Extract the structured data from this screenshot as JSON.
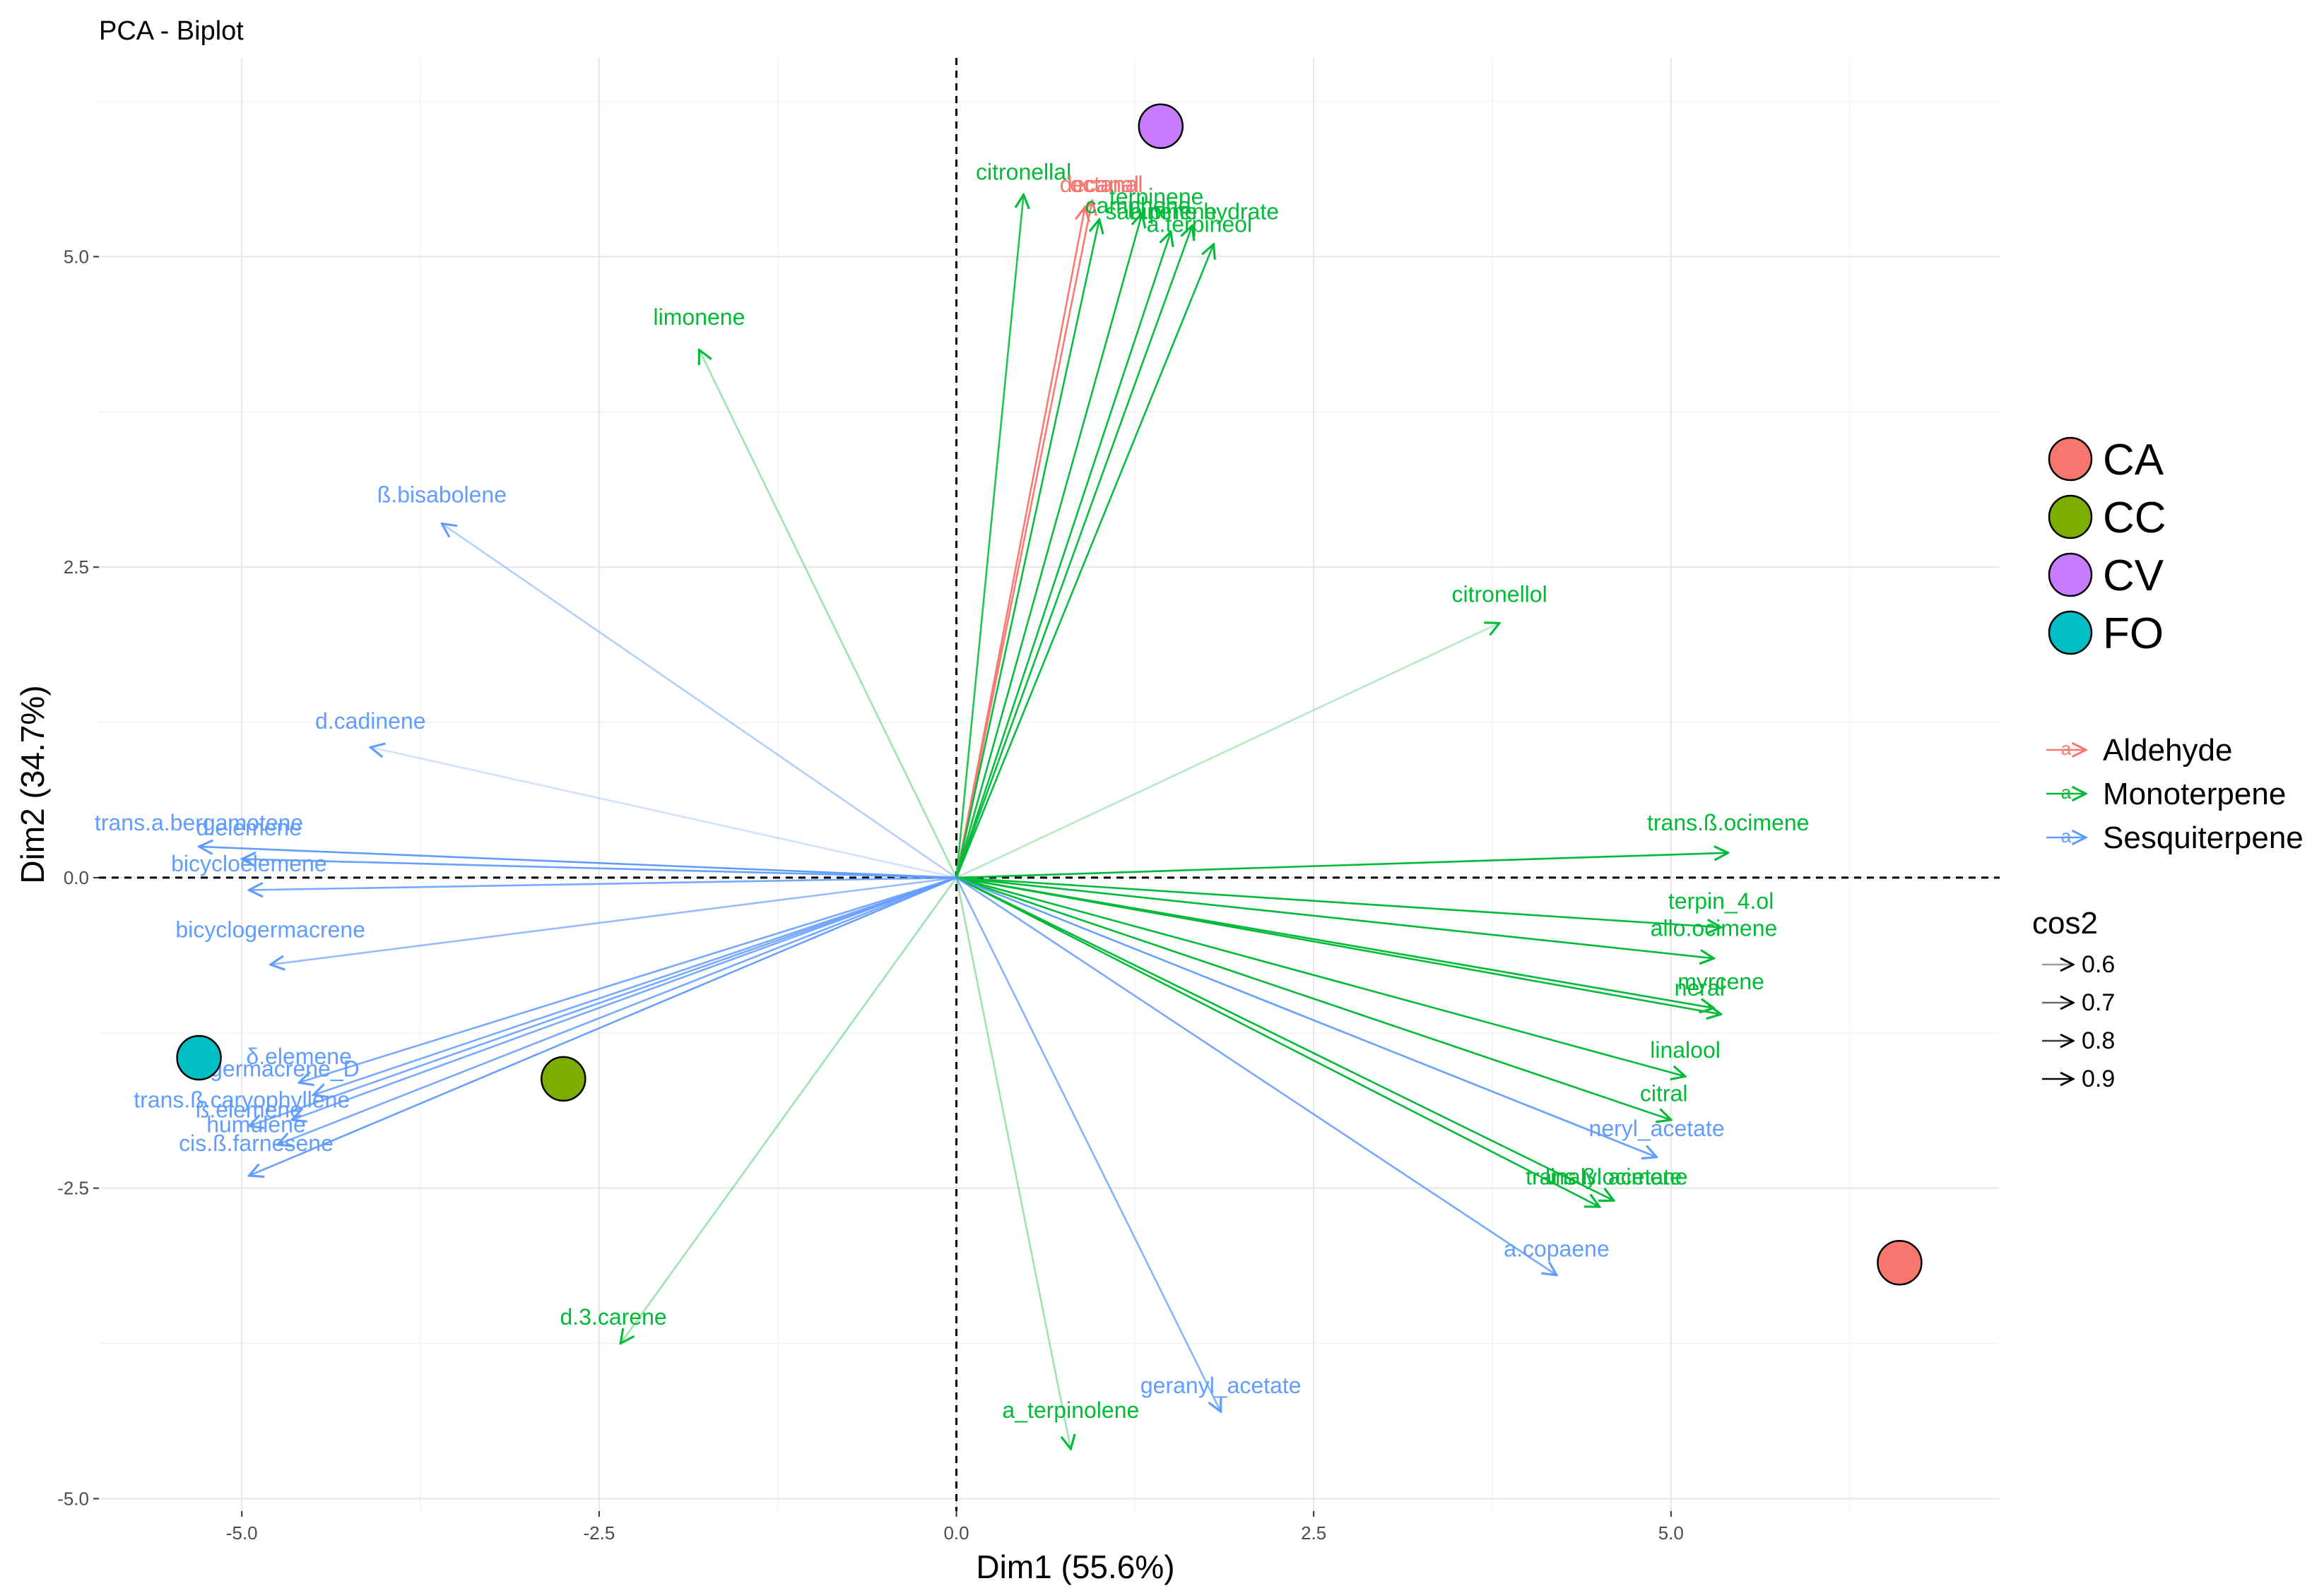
{
  "chart_data": {
    "type": "scatter",
    "title": "PCA - Biplot",
    "xlabel": "Dim1 (55.6%)",
    "ylabel": "Dim2 (34.7%)",
    "xlim": [
      -6.0,
      7.3
    ],
    "ylim": [
      -5.1,
      6.6
    ],
    "xticks": [
      -5.0,
      -2.5,
      0.0,
      2.5,
      5.0
    ],
    "xtick_labels": [
      "-5.0",
      "-2.5",
      "0.0",
      "2.5",
      "5.0"
    ],
    "yticks": [
      -5.0,
      -2.5,
      0.0,
      2.5,
      5.0
    ],
    "ytick_labels": [
      "-5.0",
      "-2.5",
      "0.0",
      "2.5",
      "5.0"
    ],
    "grid": true,
    "colors": {
      "Aldehyde": "#F8766D",
      "Monoterpene": "#00BA38",
      "Sesquiterpene": "#619CFF"
    },
    "individuals": [
      {
        "name": "CA",
        "x": 6.6,
        "y": -3.1,
        "color": "#F8766D"
      },
      {
        "name": "CC",
        "x": -2.75,
        "y": -1.62,
        "color": "#7CAE00"
      },
      {
        "name": "CV",
        "x": 1.43,
        "y": 6.05,
        "color": "#C77CFF"
      },
      {
        "name": "FO",
        "x": -5.3,
        "y": -1.45,
        "color": "#00BFC4"
      }
    ],
    "variables": [
      {
        "name": "citronellal",
        "x": 0.47,
        "y": 5.5,
        "group": "Monoterpene",
        "cos2": 0.85
      },
      {
        "name": "decanal",
        "x": 0.9,
        "y": 5.4,
        "group": "Aldehyde",
        "cos2": 0.9
      },
      {
        "name": "octanal",
        "x": 0.95,
        "y": 5.45,
        "group": "Aldehyde",
        "cos2": 0.9
      },
      {
        "name": "terpinene",
        "x": 1.3,
        "y": 5.35,
        "group": "Monoterpene",
        "cos2": 0.9
      },
      {
        "name": "camphene",
        "x": 1.0,
        "y": 5.3,
        "group": "Monoterpene",
        "cos2": 0.9
      },
      {
        "name": "sabinene hydrate",
        "x": 1.65,
        "y": 5.25,
        "group": "Monoterpene",
        "cos2": 0.9
      },
      {
        "name": "a.terpineol",
        "x": 1.8,
        "y": 5.1,
        "group": "Monoterpene",
        "cos2": 0.9
      },
      {
        "name": "a.pinene",
        "x": 1.5,
        "y": 5.2,
        "group": "Monoterpene",
        "cos2": 0.9
      },
      {
        "name": "limonene",
        "x": -1.8,
        "y": 4.25,
        "group": "Monoterpene",
        "cos2": 0.6
      },
      {
        "name": "ß.bisabolene",
        "x": -3.6,
        "y": 2.85,
        "group": "Sesquiterpene",
        "cos2": 0.65
      },
      {
        "name": "citronellol",
        "x": 3.8,
        "y": 2.05,
        "group": "Monoterpene",
        "cos2": 0.55
      },
      {
        "name": "d.cadinene",
        "x": -4.1,
        "y": 1.05,
        "group": "Sesquiterpene",
        "cos2": 0.55
      },
      {
        "name": "trans.a.bergamotene",
        "x": -5.3,
        "y": 0.25,
        "group": "Sesquiterpene",
        "cos2": 0.92
      },
      {
        "name": "d.elemene",
        "x": -5.0,
        "y": 0.15,
        "group": "Sesquiterpene",
        "cos2": 0.9
      },
      {
        "name": "bicycloelemene",
        "x": -4.95,
        "y": -0.1,
        "group": "Sesquiterpene",
        "cos2": 0.85
      },
      {
        "name": "bicyclogermacrene",
        "x": -4.8,
        "y": -0.7,
        "group": "Sesquiterpene",
        "cos2": 0.75
      },
      {
        "name": "trans.ß.ocimene",
        "x": 5.4,
        "y": 0.2,
        "group": "Monoterpene",
        "cos2": 0.95
      },
      {
        "name": "terpin_4.ol",
        "x": 5.35,
        "y": -0.4,
        "group": "Monoterpene",
        "cos2": 0.95
      },
      {
        "name": "allo.ocimene",
        "x": 5.3,
        "y": -0.65,
        "group": "Monoterpene",
        "cos2": 0.95
      },
      {
        "name": "myrcene",
        "x": 5.3,
        "y": -1.05,
        "group": "Monoterpene",
        "cos2": 0.95
      },
      {
        "name": "neral",
        "x": 5.35,
        "y": -1.1,
        "group": "Monoterpene",
        "cos2": 0.95
      },
      {
        "name": "linalool",
        "x": 5.1,
        "y": -1.6,
        "group": "Monoterpene",
        "cos2": 0.95
      },
      {
        "name": "citral",
        "x": 5.0,
        "y": -1.95,
        "group": "Monoterpene",
        "cos2": 0.95
      },
      {
        "name": "neryl_acetate",
        "x": 4.9,
        "y": -2.25,
        "group": "Sesquiterpene",
        "cos2": 0.9
      },
      {
        "name": "linalyl acetate",
        "x": 4.6,
        "y": -2.6,
        "group": "Monoterpene",
        "cos2": 0.95
      },
      {
        "name": "trans.ß.ocimene",
        "x": 4.5,
        "y": -2.65,
        "group": "Monoterpene",
        "cos2": 0.95
      },
      {
        "name": "a.copaene",
        "x": 4.2,
        "y": -3.2,
        "group": "Sesquiterpene",
        "cos2": 0.85
      },
      {
        "name": "geranyl_acetate",
        "x": 1.85,
        "y": -4.3,
        "group": "Sesquiterpene",
        "cos2": 0.8
      },
      {
        "name": "a_terpinolene",
        "x": 0.8,
        "y": -4.6,
        "group": "Monoterpene",
        "cos2": 0.6
      },
      {
        "name": "d.3.carene",
        "x": -2.35,
        "y": -3.75,
        "group": "Monoterpene",
        "cos2": 0.6
      },
      {
        "name": "δ.elemene",
        "x": -4.6,
        "y": -1.65,
        "group": "Sesquiterpene",
        "cos2": 0.85
      },
      {
        "name": "germacrene_D",
        "x": -4.5,
        "y": -1.75,
        "group": "Sesquiterpene",
        "cos2": 0.85
      },
      {
        "name": "trans.ß.caryophyllene",
        "x": -4.95,
        "y": -2.0,
        "group": "Sesquiterpene",
        "cos2": 0.85
      },
      {
        "name": "ß.elemene",
        "x": -4.65,
        "y": -1.95,
        "group": "Sesquiterpene",
        "cos2": 0.85
      },
      {
        "name": "humulene",
        "x": -4.75,
        "y": -2.15,
        "group": "Sesquiterpene",
        "cos2": 0.85
      },
      {
        "name": "cis.ß.farnesene",
        "x": -4.95,
        "y": -2.4,
        "group": "Sesquiterpene",
        "cos2": 0.9
      }
    ],
    "labels": [
      {
        "text": "citronellal",
        "x": 0.47,
        "y": 5.62,
        "group": "Monoterpene"
      },
      {
        "text": "decanal",
        "x": 1.0,
        "y": 5.52,
        "group": "Aldehyde"
      },
      {
        "text": "octanal",
        "x": 1.05,
        "y": 5.52,
        "group": "Aldehyde"
      },
      {
        "text": "terpinene",
        "x": 1.4,
        "y": 5.42,
        "group": "Monoterpene"
      },
      {
        "text": "camphene",
        "x": 1.27,
        "y": 5.35,
        "group": "Monoterpene"
      },
      {
        "text": "sabinene hydrate",
        "x": 1.65,
        "y": 5.3,
        "group": "Monoterpene"
      },
      {
        "text": "a.pinene",
        "x": 1.52,
        "y": 5.3,
        "group": "Monoterpene"
      },
      {
        "text": "a.terpineol",
        "x": 1.7,
        "y": 5.2,
        "group": "Monoterpene"
      },
      {
        "text": "limonene",
        "x": -1.8,
        "y": 4.45,
        "group": "Monoterpene"
      },
      {
        "text": "ß.bisabolene",
        "x": -3.6,
        "y": 3.02,
        "group": "Sesquiterpene"
      },
      {
        "text": "citronellol",
        "x": 3.8,
        "y": 2.22,
        "group": "Monoterpene"
      },
      {
        "text": "d.cadinene",
        "x": -4.1,
        "y": 1.2,
        "group": "Sesquiterpene"
      },
      {
        "text": "trans.a.bergamotene",
        "x": -5.3,
        "y": 0.38,
        "group": "Sesquiterpene"
      },
      {
        "text": "d.elemene",
        "x": -4.95,
        "y": 0.34,
        "group": "Sesquiterpene"
      },
      {
        "text": "bicycloelemene",
        "x": -4.95,
        "y": 0.05,
        "group": "Sesquiterpene"
      },
      {
        "text": "bicyclogermacrene",
        "x": -4.8,
        "y": -0.48,
        "group": "Sesquiterpene"
      },
      {
        "text": "trans.ß.ocimene",
        "x": 5.4,
        "y": 0.38,
        "group": "Monoterpene"
      },
      {
        "text": "terpin_4.ol",
        "x": 5.35,
        "y": -0.25,
        "group": "Monoterpene"
      },
      {
        "text": "allo.ocimene",
        "x": 5.3,
        "y": -0.47,
        "group": "Monoterpene"
      },
      {
        "text": "myrcene",
        "x": 5.35,
        "y": -0.9,
        "group": "Monoterpene"
      },
      {
        "text": "neral",
        "x": 5.2,
        "y": -0.95,
        "group": "Monoterpene"
      },
      {
        "text": "linalool",
        "x": 5.1,
        "y": -1.45,
        "group": "Monoterpene"
      },
      {
        "text": "citral",
        "x": 4.95,
        "y": -1.8,
        "group": "Monoterpene"
      },
      {
        "text": "neryl_acetate",
        "x": 4.9,
        "y": -2.08,
        "group": "Sesquiterpene"
      },
      {
        "text": "linalyl acetate",
        "x": 4.6,
        "y": -2.47,
        "group": "Monoterpene"
      },
      {
        "text": "trans.ß.ocimene",
        "x": 4.55,
        "y": -2.47,
        "group": "Monoterpene"
      },
      {
        "text": "a.copaene",
        "x": 4.2,
        "y": -3.05,
        "group": "Sesquiterpene"
      },
      {
        "text": "geranyl_acetate",
        "x": 1.85,
        "y": -4.15,
        "group": "Sesquiterpene"
      },
      {
        "text": "a_terpinolene",
        "x": 0.8,
        "y": -4.35,
        "group": "Monoterpene"
      },
      {
        "text": "d.3.carene",
        "x": -2.4,
        "y": -3.6,
        "group": "Monoterpene"
      },
      {
        "text": "δ.elemene",
        "x": -4.6,
        "y": -1.5,
        "group": "Sesquiterpene"
      },
      {
        "text": "germacrene_D",
        "x": -4.7,
        "y": -1.6,
        "group": "Sesquiterpene"
      },
      {
        "text": "trans.ß.caryophyllene",
        "x": -5.0,
        "y": -1.85,
        "group": "Sesquiterpene"
      },
      {
        "text": "ß.elemene",
        "x": -4.95,
        "y": -1.93,
        "group": "Sesquiterpene"
      },
      {
        "text": "humulene",
        "x": -4.9,
        "y": -2.05,
        "group": "Sesquiterpene"
      },
      {
        "text": "cis.ß.farnesene",
        "x": -4.9,
        "y": -2.2,
        "group": "Sesquiterpene"
      }
    ],
    "legend": {
      "groups_title": "",
      "individuals": [
        "CA",
        "CC",
        "CV",
        "FO"
      ],
      "variable_groups": [
        "Aldehyde",
        "Monoterpene",
        "Sesquiterpene"
      ],
      "cos2_title": "cos2",
      "cos2_values": [
        "0.6",
        "0.7",
        "0.8",
        "0.9"
      ],
      "placement": "right"
    }
  }
}
